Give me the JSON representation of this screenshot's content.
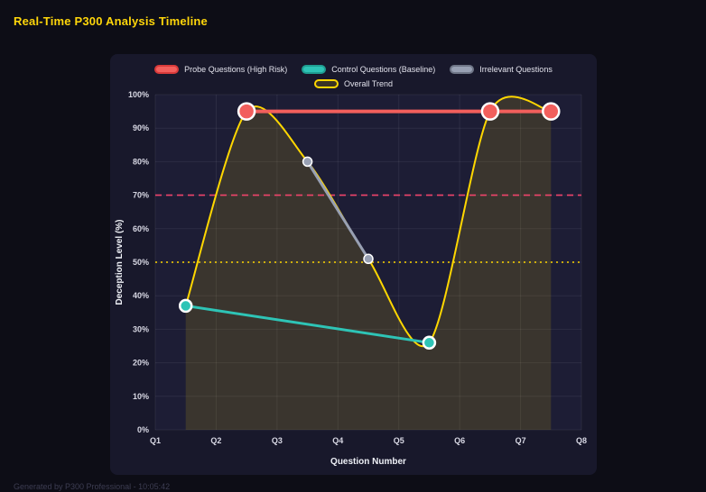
{
  "page": {
    "title": "Real-Time P300 Analysis Timeline",
    "footer": "Generated by P300 Professional - 10:05:42"
  },
  "colors": {
    "background": "#0d0d16",
    "panel_bg": "#18182b",
    "plot_bg": "#1d1d35",
    "grid": "rgba(255,255,255,0.07)",
    "accent_yellow": "#ffd60a",
    "probe_red": "#f25f5c",
    "control_teal": "#2ec4b6",
    "irrelevant_gray": "#98a0b3",
    "trend_yellow": "#ffd700",
    "threshold_red": "#f0446b"
  },
  "chart_data": {
    "type": "line",
    "title": "Real-Time P300 Analysis Timeline",
    "x_axis": {
      "label": "Question Number",
      "ticks": [
        "Q1",
        "Q2",
        "Q3",
        "Q4",
        "Q5",
        "Q6",
        "Q7",
        "Q8"
      ],
      "min": 1,
      "max": 8
    },
    "y_axis": {
      "label": "Deception Level (%)",
      "ticks": [
        "0%",
        "10%",
        "20%",
        "30%",
        "40%",
        "50%",
        "60%",
        "70%",
        "80%",
        "90%",
        "100%"
      ],
      "min": 0,
      "max": 100
    },
    "series": [
      {
        "key": "probe",
        "name": "Probe Questions (High Risk)",
        "color": "#f25f5c",
        "swatch_fill": "#f25f5c",
        "swatch_border": "#d93a3a",
        "line_width": 4,
        "point_radius": 9,
        "point_stroke_width": 2.5,
        "smooth": false,
        "points": [
          {
            "x": 2.5,
            "y": 95
          },
          {
            "x": 6.5,
            "y": 95
          },
          {
            "x": 7.5,
            "y": 95
          }
        ]
      },
      {
        "key": "control",
        "name": "Control Questions (Baseline)",
        "color": "#2ec4b6",
        "swatch_fill": "#2ec4b6",
        "swatch_border": "#1f9e92",
        "line_width": 3,
        "point_radius": 6.5,
        "point_stroke_width": 2.5,
        "smooth": false,
        "points": [
          {
            "x": 1.5,
            "y": 37
          },
          {
            "x": 5.5,
            "y": 26
          }
        ]
      },
      {
        "key": "irrelevant",
        "name": "Irrelevant Questions",
        "color": "#98a0b3",
        "swatch_fill": "#98a0b3",
        "swatch_border": "#6f7687",
        "line_width": 3,
        "point_radius": 5,
        "point_stroke_width": 1.5,
        "smooth": false,
        "points": [
          {
            "x": 3.5,
            "y": 80
          },
          {
            "x": 4.5,
            "y": 51
          }
        ]
      },
      {
        "key": "trend",
        "name": "Overall Trend",
        "color": "#ffd700",
        "swatch_fill": "rgba(255,215,0,0.15)",
        "swatch_border": "#ffd700",
        "line_width": 2,
        "point_radius": 0,
        "point_stroke_width": 0,
        "smooth": true,
        "fill": "rgba(255,215,0,0.13)",
        "points": [
          {
            "x": 1.5,
            "y": 37
          },
          {
            "x": 2.5,
            "y": 95
          },
          {
            "x": 3.5,
            "y": 80
          },
          {
            "x": 4.5,
            "y": 51
          },
          {
            "x": 5.5,
            "y": 26
          },
          {
            "x": 6.5,
            "y": 95
          },
          {
            "x": 7.5,
            "y": 95
          }
        ]
      }
    ],
    "thresholds": [
      {
        "value": 70,
        "color": "#f0446b",
        "dash": "7 5"
      },
      {
        "value": 50,
        "color": "#ffd700",
        "dash": "2 4"
      }
    ],
    "legend": {
      "rows": [
        [
          "Probe Questions (High Risk)",
          "Control Questions (Baseline)",
          "Irrelevant Questions"
        ],
        [
          "Overall Trend"
        ]
      ]
    }
  }
}
